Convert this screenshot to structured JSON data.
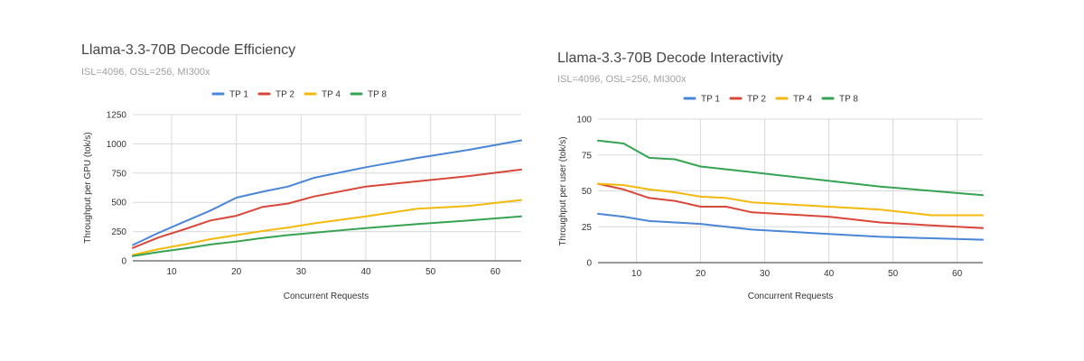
{
  "chart_data": [
    {
      "type": "line",
      "title": "Llama-3.3-70B Decode Efficiency",
      "subtitle": "ISL=4096, OSL=256, MI300x",
      "xlabel": "Concurrent Requests",
      "ylabel": "Throughput per GPU (tok/s)",
      "xlim": [
        4,
        64
      ],
      "ylim": [
        0,
        1250
      ],
      "xticks": [
        10,
        20,
        30,
        40,
        50,
        60
      ],
      "yticks": [
        0,
        250,
        500,
        750,
        1000,
        1250
      ],
      "grid": true,
      "legend_position": "top",
      "series": [
        {
          "name": "TP 1",
          "color": "#4a86d6",
          "x": [
            4,
            8,
            12,
            16,
            20,
            24,
            28,
            32,
            40,
            48,
            56,
            64
          ],
          "y": [
            135,
            240,
            335,
            430,
            540,
            590,
            635,
            710,
            800,
            880,
            950,
            1030
          ]
        },
        {
          "name": "TP 2",
          "color": "#d9473a",
          "x": [
            4,
            8,
            12,
            16,
            20,
            24,
            28,
            32,
            40,
            48,
            56,
            64
          ],
          "y": [
            110,
            200,
            270,
            345,
            385,
            460,
            490,
            550,
            635,
            680,
            725,
            780
          ]
        },
        {
          "name": "TP 4",
          "color": "#f3b90c",
          "x": [
            4,
            8,
            12,
            16,
            20,
            24,
            28,
            32,
            40,
            48,
            56,
            64
          ],
          "y": [
            50,
            100,
            140,
            185,
            220,
            255,
            285,
            320,
            380,
            445,
            470,
            520
          ]
        },
        {
          "name": "TP 8",
          "color": "#35a352",
          "x": [
            4,
            8,
            12,
            16,
            20,
            24,
            28,
            32,
            40,
            48,
            56,
            64
          ],
          "y": [
            40,
            75,
            105,
            140,
            165,
            195,
            220,
            240,
            280,
            315,
            345,
            380
          ]
        }
      ]
    },
    {
      "type": "line",
      "title": "Llama-3.3-70B Decode Interactivity",
      "subtitle": "ISL=4096, OSL=256, MI300x",
      "xlabel": "Concurrent Requests",
      "ylabel": "Throughput per user (tok/s)",
      "xlim": [
        4,
        64
      ],
      "ylim": [
        0,
        100
      ],
      "xticks": [
        10,
        20,
        30,
        40,
        50,
        60
      ],
      "yticks": [
        0,
        25,
        50,
        75,
        100
      ],
      "grid": true,
      "legend_position": "top",
      "series": [
        {
          "name": "TP 1",
          "color": "#4a86d6",
          "x": [
            4,
            8,
            12,
            16,
            20,
            24,
            28,
            32,
            40,
            48,
            56,
            64
          ],
          "y": [
            34,
            32,
            29,
            28,
            27,
            25,
            23,
            22,
            20,
            18,
            17,
            16
          ]
        },
        {
          "name": "TP 2",
          "color": "#d9473a",
          "x": [
            4,
            8,
            12,
            16,
            20,
            24,
            28,
            32,
            40,
            48,
            56,
            64
          ],
          "y": [
            55,
            51,
            45,
            43,
            39,
            39,
            35,
            34,
            32,
            28,
            26,
            24
          ]
        },
        {
          "name": "TP 4",
          "color": "#f3b90c",
          "x": [
            4,
            8,
            12,
            16,
            20,
            24,
            28,
            32,
            40,
            48,
            56,
            64
          ],
          "y": [
            55,
            54,
            51,
            49,
            46,
            45,
            42,
            41,
            39,
            37,
            33,
            33
          ]
        },
        {
          "name": "TP 8",
          "color": "#35a352",
          "x": [
            4,
            8,
            12,
            16,
            20,
            24,
            28,
            32,
            40,
            48,
            56,
            64
          ],
          "y": [
            85,
            83,
            73,
            72,
            67,
            65,
            63,
            61,
            57,
            53,
            50,
            47
          ]
        }
      ]
    }
  ]
}
